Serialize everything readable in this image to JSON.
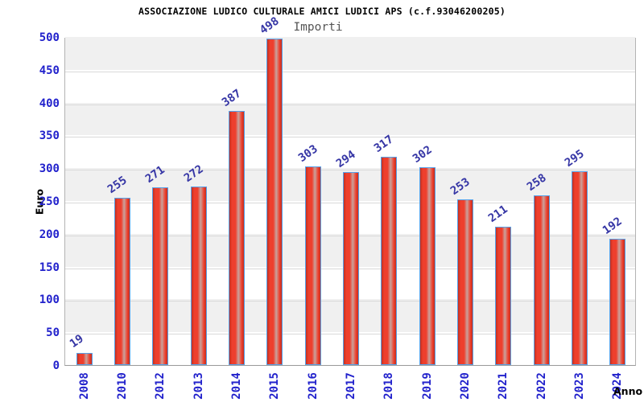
{
  "chart_data": {
    "type": "bar",
    "title": "ASSOCIAZIONE LUDICO CULTURALE AMICI LUDICI APS (c.f.93046200205)",
    "subtitle": "Importi",
    "xlabel": "Anno",
    "ylabel": "Euro",
    "categories": [
      "2008",
      "2010",
      "2012",
      "2013",
      "2014",
      "2015",
      "2016",
      "2017",
      "2018",
      "2019",
      "2020",
      "2021",
      "2022",
      "2023",
      "2024"
    ],
    "values": [
      19,
      255,
      271,
      272,
      387,
      498,
      303,
      294,
      317,
      302,
      253,
      211,
      258,
      295,
      192
    ],
    "ylim": [
      0,
      500
    ],
    "ytick_step": 50,
    "grid": true,
    "legend_position": "none",
    "value_labels_rotated": true,
    "colors": {
      "title": "#000000",
      "subtitle": "#555555",
      "tick_label": "#2222cc",
      "value_label": "#3535a5",
      "bar_border": "#56a0e8",
      "bar_red_dark": "#c23020",
      "bar_red": "#ee3f2d",
      "bar_highlight": "#c9a29c",
      "band_gray": "#f0f0f0",
      "band_white": "#ffffff",
      "grid_line": "#d9d9d9",
      "plot_border": "#b3b3b3",
      "axis_label": "#000000"
    }
  }
}
